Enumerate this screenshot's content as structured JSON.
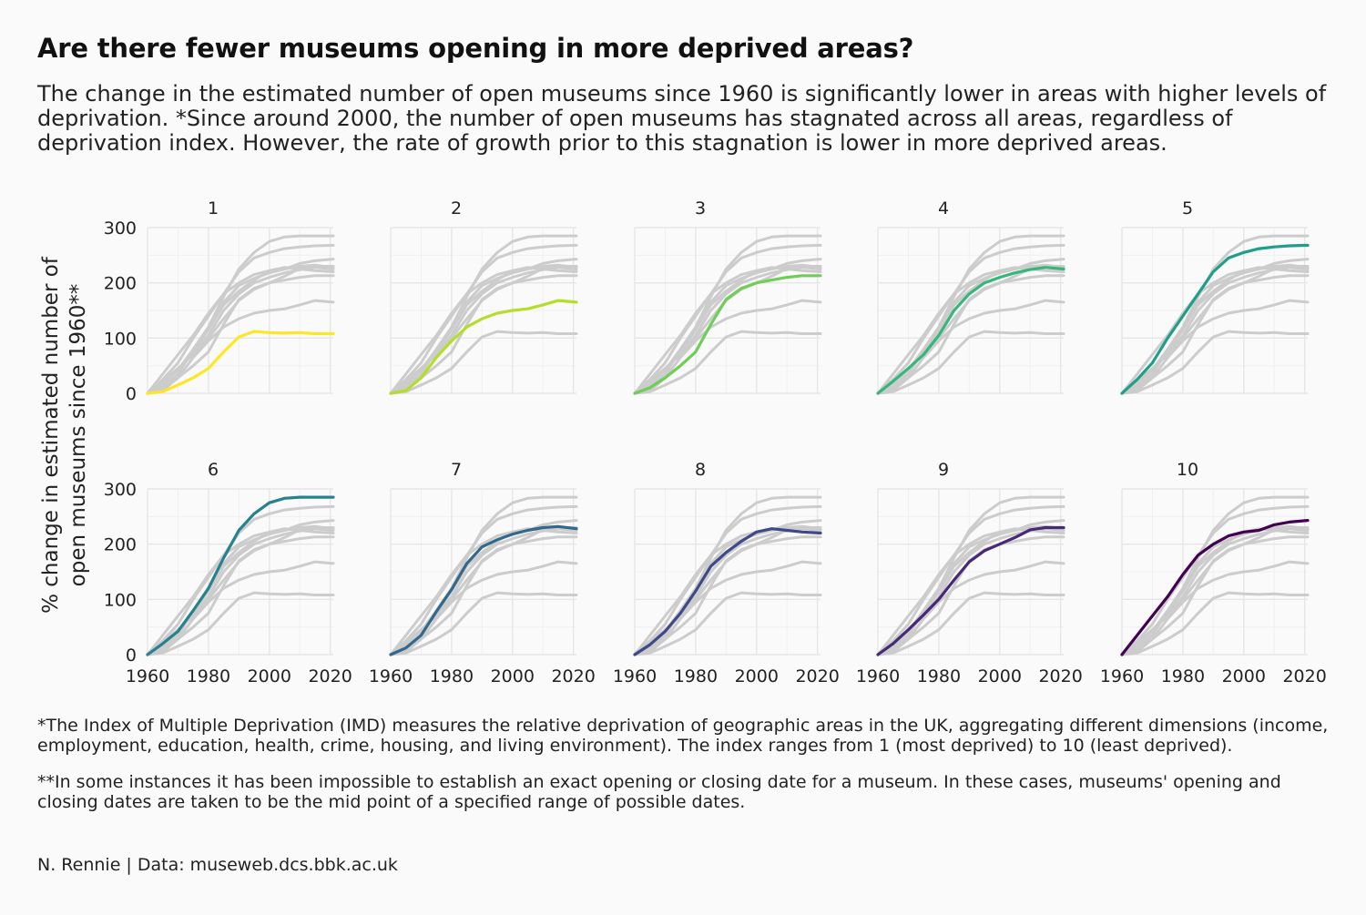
{
  "title": "Are there fewer museums opening in more deprived areas?",
  "subtitle": "The change in the estimated number of open museums since 1960 is significantly lower in areas with higher levels of deprivation. *Since around 2000, the number of open museums has stagnated across all areas, regardless of deprivation index. However, the rate of growth prior to this stagnation is lower in more deprived areas.",
  "note_imd": "*The Index of Multiple Deprivation (IMD) measures the relative deprivation of geographic areas in the UK, aggregating different dimensions (income, employment, education, health, crime, housing, and living environment). The index ranges from 1 (most deprived) to 10 (least deprived).",
  "note_dates": "**In some instances it has been impossible to establish an exact opening or closing date for a museum. In these cases, museums' opening and closing dates are taken to be the mid point of a specified range of possible dates.",
  "caption": "N. Rennie | Data: museweb.dcs.bbk.ac.uk",
  "chart_data": {
    "type": "line",
    "facet_by": "IMD decile",
    "ylabel_line1": "% change in estimated number of",
    "ylabel_line2": "open museums since 1960**",
    "xlabel": "",
    "xlim": [
      1960,
      2021
    ],
    "ylim": [
      0,
      300
    ],
    "x_ticks": [
      1960,
      1980,
      2000,
      2020
    ],
    "y_ticks": [
      0,
      100,
      200,
      300
    ],
    "x_tick_labels": [
      "1960",
      "1980",
      "2000",
      "2020"
    ],
    "y_tick_labels": [
      "0",
      "100",
      "200",
      "300"
    ],
    "background_series_color": "#cccccc",
    "x": [
      1960,
      1965,
      1970,
      1975,
      1980,
      1985,
      1990,
      1995,
      2000,
      2005,
      2010,
      2015,
      2021
    ],
    "series": [
      {
        "name": "1",
        "color": "#fde725",
        "values": [
          0,
          3,
          15,
          28,
          45,
          75,
          102,
          112,
          110,
          109,
          110,
          108,
          108
        ]
      },
      {
        "name": "2",
        "color": "#b5de2b",
        "values": [
          0,
          5,
          28,
          65,
          95,
          120,
          135,
          145,
          150,
          153,
          160,
          168,
          165
        ]
      },
      {
        "name": "3",
        "color": "#6ece58",
        "values": [
          0,
          10,
          28,
          50,
          75,
          125,
          170,
          190,
          200,
          205,
          210,
          213,
          213
        ]
      },
      {
        "name": "4",
        "color": "#35b779",
        "values": [
          0,
          22,
          45,
          70,
          105,
          150,
          180,
          200,
          210,
          218,
          224,
          228,
          225
        ]
      },
      {
        "name": "5",
        "color": "#1f9e89",
        "values": [
          0,
          25,
          55,
          100,
          140,
          180,
          220,
          245,
          255,
          262,
          265,
          267,
          268
        ]
      },
      {
        "name": "6",
        "color": "#26828e",
        "values": [
          0,
          20,
          42,
          80,
          120,
          175,
          225,
          255,
          275,
          283,
          285,
          285,
          285
        ]
      },
      {
        "name": "7",
        "color": "#31688e",
        "values": [
          0,
          12,
          35,
          78,
          118,
          165,
          195,
          208,
          218,
          225,
          230,
          232,
          228
        ]
      },
      {
        "name": "8",
        "color": "#3e4989",
        "values": [
          0,
          18,
          42,
          75,
          115,
          160,
          185,
          205,
          222,
          228,
          225,
          222,
          220
        ]
      },
      {
        "name": "9",
        "color": "#482878",
        "values": [
          0,
          20,
          45,
          72,
          100,
          135,
          168,
          188,
          200,
          212,
          226,
          230,
          230
        ]
      },
      {
        "name": "10",
        "color": "#440154",
        "values": [
          0,
          35,
          70,
          105,
          145,
          180,
          200,
          215,
          222,
          225,
          235,
          240,
          243
        ]
      }
    ]
  }
}
